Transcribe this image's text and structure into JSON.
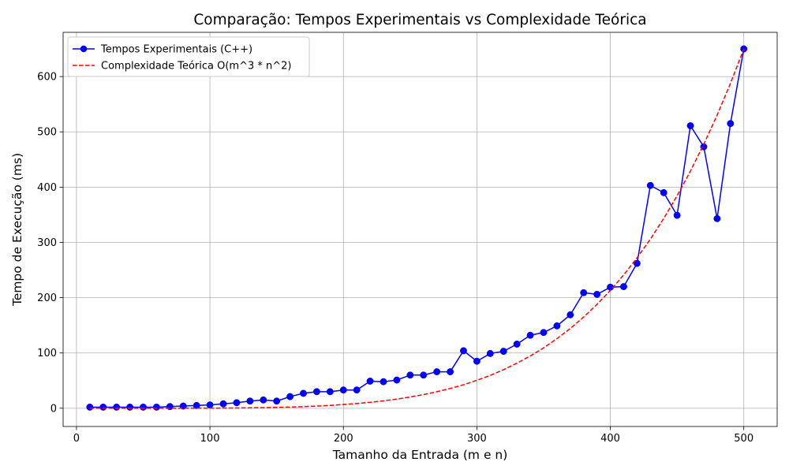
{
  "chart_data": {
    "type": "line",
    "title": "Comparação: Tempos Experimentais vs Complexidade Teórica",
    "xlabel": "Tamanho da Entrada (m e n)",
    "ylabel": "Tempo de Execução (ms)",
    "xlim": [
      -10,
      525
    ],
    "ylim": [
      -33,
      680
    ],
    "xticks": [
      0,
      100,
      200,
      300,
      400,
      500
    ],
    "yticks": [
      0,
      100,
      200,
      300,
      400,
      500,
      600
    ],
    "grid": true,
    "legend_position": "top-left",
    "x": [
      10,
      20,
      30,
      40,
      50,
      60,
      70,
      80,
      90,
      100,
      110,
      120,
      130,
      140,
      150,
      160,
      170,
      180,
      190,
      200,
      210,
      220,
      230,
      240,
      250,
      260,
      270,
      280,
      290,
      300,
      310,
      320,
      330,
      340,
      350,
      360,
      370,
      380,
      390,
      400,
      410,
      420,
      430,
      440,
      450,
      460,
      470,
      480,
      490,
      500
    ],
    "series": [
      {
        "name": "Tempos Experimentais (C++)",
        "style": "solid-line-with-markers",
        "color": "#0000ff",
        "values": [
          2,
          2,
          2,
          2,
          2,
          2,
          3,
          4,
          5,
          6,
          8,
          10,
          13,
          15,
          13,
          21,
          27,
          30,
          30,
          33,
          33,
          49,
          48,
          51,
          60,
          60,
          66,
          66,
          104,
          85,
          99,
          103,
          116,
          132,
          137,
          149,
          169,
          209,
          206,
          219,
          220,
          262,
          403,
          390,
          349,
          511,
          473,
          343,
          515,
          650
        ]
      },
      {
        "name": "Complexidade Teórica O(m^3 * n^2)",
        "style": "dashed-line",
        "color": "#ff0000",
        "values": [
          0.0,
          0.0,
          0.0,
          0.0,
          0.0,
          0.0,
          0.0,
          0.1,
          0.1,
          0.2,
          0.3,
          0.5,
          0.8,
          1.1,
          1.6,
          2.1,
          2.9,
          3.9,
          5.1,
          6.7,
          8.5,
          10.7,
          13.4,
          16.5,
          20.3,
          24.7,
          29.9,
          35.7,
          42.5,
          50.5,
          59.4,
          69.8,
          81.5,
          94.5,
          109.2,
          125.9,
          144.3,
          164.9,
          187.9,
          213.0,
          241.2,
          272.0,
          305.8,
          343.3,
          384.3,
          428.9,
          477.5,
          530.1,
          587.6,
          650.0
        ]
      }
    ]
  }
}
